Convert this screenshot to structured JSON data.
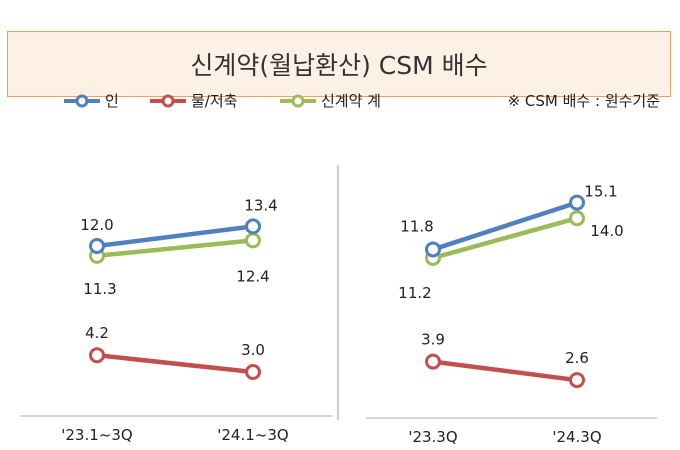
{
  "title": "신계약(월납환산) CSM 배수",
  "note": "※ CSM 배수 : 원수기준",
  "legend": [
    {
      "name": "인",
      "color": "#4f81bd"
    },
    {
      "name": "물/저축",
      "color": "#c0504d"
    },
    {
      "name": "신계약 계",
      "color": "#9bbb59"
    }
  ],
  "chart_data": [
    {
      "type": "line",
      "categories": [
        "'23.1~3Q",
        "'24.1~3Q"
      ],
      "series": [
        {
          "name": "인",
          "values": [
            12.0,
            13.4
          ]
        },
        {
          "name": "물/저축",
          "values": [
            4.2,
            3.0
          ]
        },
        {
          "name": "신계약 계",
          "values": [
            11.3,
            12.4
          ]
        }
      ],
      "grid": false
    },
    {
      "type": "line",
      "categories": [
        "'23.3Q",
        "'24.3Q"
      ],
      "series": [
        {
          "name": "인",
          "values": [
            11.8,
            15.1
          ]
        },
        {
          "name": "물/저축",
          "values": [
            3.9,
            2.6
          ]
        },
        {
          "name": "신계약 계",
          "values": [
            11.2,
            14.0
          ]
        }
      ],
      "grid": false
    }
  ]
}
